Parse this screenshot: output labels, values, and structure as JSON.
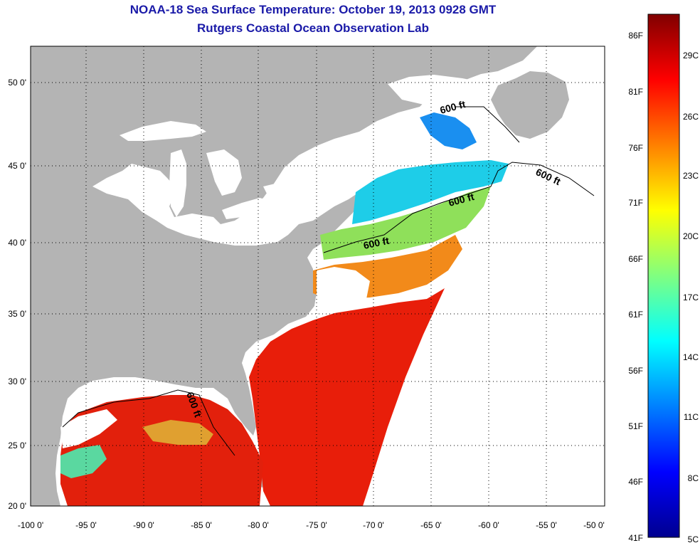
{
  "header": {
    "title": "NOAA-18 Sea Surface Temperature:  October 19, 2013 0928 GMT",
    "subtitle": "Rutgers Coastal Ocean Observation Lab"
  },
  "map": {
    "lon_labels": [
      "-100 0'",
      "-95 0'",
      "-90 0'",
      "-85 0'",
      "-80 0'",
      "-75 0'",
      "-70 0'",
      "-65 0'",
      "-60 0'",
      "-55 0'",
      "-50 0'"
    ],
    "lat_labels": [
      "20 0'",
      "25 0'",
      "30 0'",
      "35 0'",
      "40 0'",
      "45 0'",
      "50 0'"
    ],
    "contour_labels": [
      "600 ft",
      "600 ft",
      "600 ft",
      "600 ft",
      "600 ft"
    ],
    "colors": {
      "land": "#b4b4b4",
      "cloud": "#ffffff",
      "grid": "#000000"
    }
  },
  "colorbar": {
    "f_labels": [
      "86F",
      "81F",
      "76F",
      "71F",
      "66F",
      "61F",
      "56F",
      "51F",
      "46F",
      "41F"
    ],
    "c_labels": [
      "29C",
      "26C",
      "23C",
      "20C",
      "17C",
      "14C",
      "11C",
      "8C",
      "5C"
    ],
    "stops": [
      "#00008f",
      "#0000ff",
      "#0080ff",
      "#00ffff",
      "#80ff80",
      "#ffff00",
      "#ff8000",
      "#ff0000",
      "#800000"
    ]
  }
}
